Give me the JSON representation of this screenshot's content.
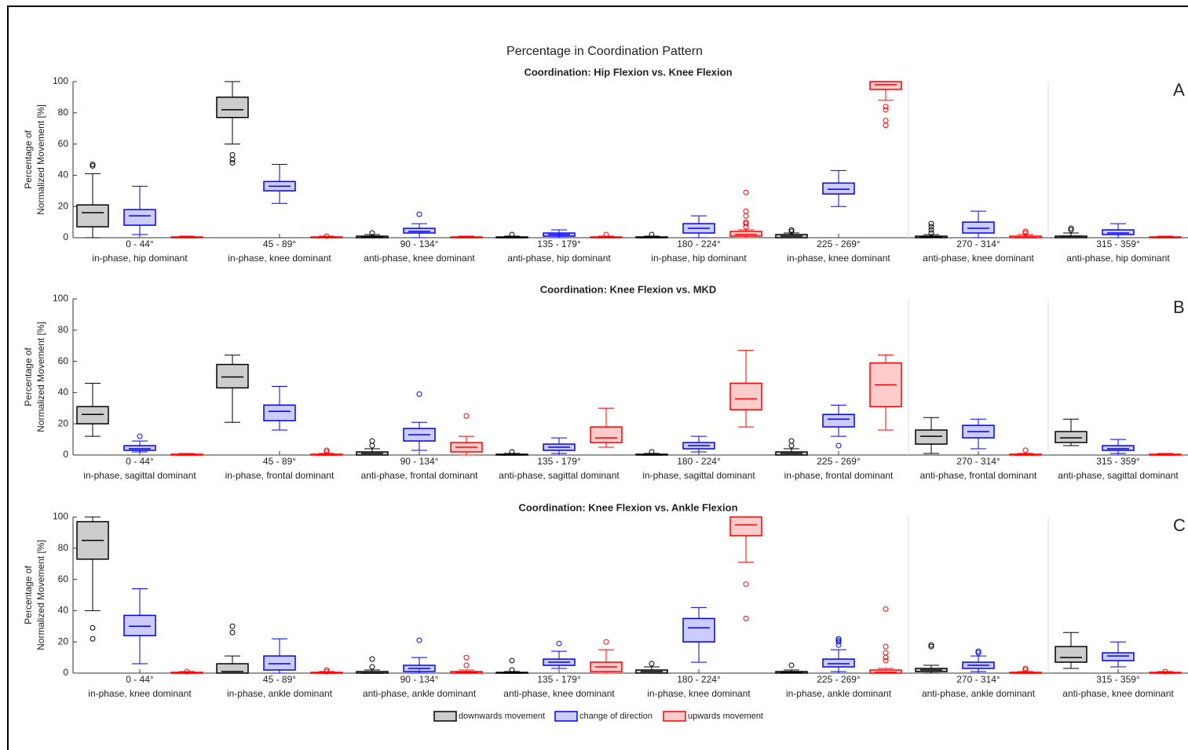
{
  "title": "Percentage in Coordination Pattern",
  "chart_data": [
    {
      "type": "box",
      "title": "Coordination: Hip Flexion vs. Knee Flexion",
      "panel": "A",
      "ylabel": [
        "Percentage of",
        "Normalized Movement [%]"
      ],
      "categories": [
        "0 - 44°",
        "45 - 89°",
        "90 - 134°",
        "135 - 179°",
        "180 - 224°",
        "225 - 269°",
        "270 - 314°",
        "315 - 359°"
      ],
      "sublabels": [
        "in-phase, hip dominant",
        "in-phase, knee dominant",
        "anti-phase, knee dominant",
        "anti-phase, hip dominant",
        "in-phase, hip dominant",
        "in-phase, knee dominant",
        "anti-phase, knee dominant",
        "anti-phase, hip dominant"
      ],
      "ylim": [
        0,
        100
      ],
      "yticks": [
        0,
        20,
        40,
        60,
        80,
        100
      ],
      "series": [
        {
          "name": "downwards movement",
          "color": "#000000",
          "boxes": [
            {
              "min": 0,
              "q1": 7,
              "median": 16,
              "q3": 21,
              "max": 41,
              "outliers": [
                46,
                47
              ]
            },
            {
              "min": 60,
              "q1": 77,
              "median": 82,
              "q3": 90,
              "max": 100,
              "outliers": [
                48,
                50,
                53
              ]
            },
            {
              "min": 0,
              "q1": 0,
              "median": 0.5,
              "q3": 1,
              "max": 2,
              "outliers": [
                3
              ]
            },
            {
              "min": 0,
              "q1": 0,
              "median": 0,
              "q3": 0.5,
              "max": 1,
              "outliers": [
                2
              ]
            },
            {
              "min": 0,
              "q1": 0,
              "median": 0,
              "q3": 0.5,
              "max": 1,
              "outliers": [
                2
              ]
            },
            {
              "min": 0,
              "q1": 0,
              "median": 1,
              "q3": 2,
              "max": 3,
              "outliers": [
                4,
                5
              ]
            },
            {
              "min": 0,
              "q1": 0,
              "median": 0.5,
              "q3": 1,
              "max": 2,
              "outliers": [
                3,
                5,
                7,
                9
              ]
            },
            {
              "min": 0,
              "q1": 0,
              "median": 1,
              "q3": 1,
              "max": 3,
              "outliers": [
                5,
                6
              ]
            }
          ]
        },
        {
          "name": "change of direction",
          "color": "#0000ff",
          "boxes": [
            {
              "min": 2,
              "q1": 8,
              "median": 14,
              "q3": 18,
              "max": 33,
              "outliers": []
            },
            {
              "min": 22,
              "q1": 30,
              "median": 33,
              "q3": 36,
              "max": 47,
              "outliers": []
            },
            {
              "min": 0,
              "q1": 3,
              "median": 4,
              "q3": 6,
              "max": 9,
              "outliers": [
                15
              ]
            },
            {
              "min": 0,
              "q1": 1,
              "median": 2,
              "q3": 3,
              "max": 5,
              "outliers": []
            },
            {
              "min": 0,
              "q1": 3,
              "median": 6,
              "q3": 9,
              "max": 14,
              "outliers": []
            },
            {
              "min": 20,
              "q1": 28,
              "median": 31,
              "q3": 35,
              "max": 43,
              "outliers": []
            },
            {
              "min": 0,
              "q1": 3,
              "median": 6,
              "q3": 10,
              "max": 17,
              "outliers": []
            },
            {
              "min": 0,
              "q1": 2,
              "median": 3,
              "q3": 5,
              "max": 9,
              "outliers": []
            }
          ]
        },
        {
          "name": "upwards movement",
          "color": "#ff0000",
          "boxes": [
            {
              "min": 0,
              "q1": 0,
              "median": 0,
              "q3": 0.5,
              "max": 1,
              "outliers": []
            },
            {
              "min": 0,
              "q1": 0,
              "median": 0,
              "q3": 0.5,
              "max": 1,
              "outliers": [
                1
              ]
            },
            {
              "min": 0,
              "q1": 0,
              "median": 0,
              "q3": 0.5,
              "max": 1,
              "outliers": []
            },
            {
              "min": 0,
              "q1": 0,
              "median": 0,
              "q3": 0.5,
              "max": 1,
              "outliers": [
                2
              ]
            },
            {
              "min": 0,
              "q1": 1,
              "median": 2,
              "q3": 4,
              "max": 5,
              "outliers": [
                7,
                9,
                10,
                14,
                17,
                29
              ]
            },
            {
              "min": 88,
              "q1": 95,
              "median": 98,
              "q3": 100,
              "max": 100,
              "outliers": [
                72,
                75,
                82,
                84
              ]
            },
            {
              "min": 0,
              "q1": 0,
              "median": 0,
              "q3": 1,
              "max": 2,
              "outliers": [
                3,
                4
              ]
            },
            {
              "min": 0,
              "q1": 0,
              "median": 0,
              "q3": 0.5,
              "max": 1,
              "outliers": []
            }
          ]
        }
      ]
    },
    {
      "type": "box",
      "title": "Coordination: Knee Flexion vs. MKD",
      "panel": "B",
      "ylabel": [
        "Percentage of",
        "Normalized Movement [%]"
      ],
      "categories": [
        "0 - 44°",
        "45 - 89°",
        "90 - 134°",
        "135 - 179°",
        "180 - 224°",
        "225 - 269°",
        "270 - 314°",
        "315 - 359°"
      ],
      "sublabels": [
        "in-phase, sagittal dominant",
        "in-phase, frontal dominant",
        "anti-phase, frontal dominant",
        "anti-phase, sagittal dominant",
        "in-phase, sagittal dominant",
        "in-phase, frontal dominant",
        "anti-phase, frontal dominant",
        "anti-phase, sagittal dominant"
      ],
      "ylim": [
        0,
        100
      ],
      "yticks": [
        0,
        20,
        40,
        60,
        80,
        100
      ],
      "series": [
        {
          "name": "downwards movement",
          "color": "#000000",
          "boxes": [
            {
              "min": 12,
              "q1": 20,
              "median": 26,
              "q3": 31,
              "max": 46,
              "outliers": []
            },
            {
              "min": 21,
              "q1": 43,
              "median": 50,
              "q3": 58,
              "max": 64,
              "outliers": []
            },
            {
              "min": 0,
              "q1": 0,
              "median": 1,
              "q3": 2,
              "max": 4,
              "outliers": [
                6,
                9
              ]
            },
            {
              "min": 0,
              "q1": 0,
              "median": 0,
              "q3": 0.5,
              "max": 1,
              "outliers": [
                2
              ]
            },
            {
              "min": 0,
              "q1": 0,
              "median": 0,
              "q3": 0.5,
              "max": 1,
              "outliers": [
                2
              ]
            },
            {
              "min": 0,
              "q1": 0,
              "median": 1,
              "q3": 2,
              "max": 4,
              "outliers": [
                6,
                9
              ]
            },
            {
              "min": 1,
              "q1": 7,
              "median": 12,
              "q3": 16,
              "max": 24,
              "outliers": []
            },
            {
              "min": 6,
              "q1": 8,
              "median": 11,
              "q3": 15,
              "max": 23,
              "outliers": []
            }
          ]
        },
        {
          "name": "change of direction",
          "color": "#0000ff",
          "boxes": [
            {
              "min": 2,
              "q1": 3,
              "median": 4,
              "q3": 6,
              "max": 9,
              "outliers": [
                12
              ]
            },
            {
              "min": 16,
              "q1": 22,
              "median": 28,
              "q3": 32,
              "max": 44,
              "outliers": []
            },
            {
              "min": 3,
              "q1": 9,
              "median": 13,
              "q3": 17,
              "max": 21,
              "outliers": [
                39
              ]
            },
            {
              "min": 1,
              "q1": 3,
              "median": 5,
              "q3": 7,
              "max": 11,
              "outliers": []
            },
            {
              "min": 2,
              "q1": 4,
              "median": 6,
              "q3": 8,
              "max": 12,
              "outliers": []
            },
            {
              "min": 12,
              "q1": 18,
              "median": 23,
              "q3": 26,
              "max": 32,
              "outliers": [
                6
              ]
            },
            {
              "min": 4,
              "q1": 11,
              "median": 15,
              "q3": 19,
              "max": 23,
              "outliers": []
            },
            {
              "min": 1,
              "q1": 3,
              "median": 4,
              "q3": 6,
              "max": 10,
              "outliers": []
            }
          ]
        },
        {
          "name": "upwards movement",
          "color": "#ff0000",
          "boxes": [
            {
              "min": 0,
              "q1": 0,
              "median": 0,
              "q3": 0.5,
              "max": 1,
              "outliers": []
            },
            {
              "min": 0,
              "q1": 0,
              "median": 0,
              "q3": 0.5,
              "max": 1,
              "outliers": [
                2,
                3
              ]
            },
            {
              "min": 0,
              "q1": 2,
              "median": 5,
              "q3": 8,
              "max": 12,
              "outliers": [
                25
              ]
            },
            {
              "min": 5,
              "q1": 8,
              "median": 11,
              "q3": 18,
              "max": 30,
              "outliers": []
            },
            {
              "min": 18,
              "q1": 29,
              "median": 36,
              "q3": 46,
              "max": 67,
              "outliers": []
            },
            {
              "min": 16,
              "q1": 31,
              "median": 45,
              "q3": 59,
              "max": 64,
              "outliers": []
            },
            {
              "min": 0,
              "q1": 0,
              "median": 0,
              "q3": 0.5,
              "max": 1,
              "outliers": [
                3
              ]
            },
            {
              "min": 0,
              "q1": 0,
              "median": 0,
              "q3": 0.5,
              "max": 1,
              "outliers": []
            }
          ]
        }
      ]
    },
    {
      "type": "box",
      "title": "Coordination: Knee Flexion vs. Ankle Flexion",
      "panel": "C",
      "ylabel": [
        "Percentage of",
        "Normalized Movement [%]"
      ],
      "categories": [
        "0 - 44°",
        "45 - 89°",
        "90 - 134°",
        "135 - 179°",
        "180 - 224°",
        "225 - 269°",
        "270 - 314°",
        "315 - 359°"
      ],
      "sublabels": [
        "in-phase, knee dominant",
        "in-phase, ankle dominant",
        "anti-phase, ankle dominant",
        "anti-phase, knee dominant",
        "in-phase, knee dominant",
        "in-phase, ankle dominant",
        "anti-phase, ankle dominant",
        "anti-phase, knee dominant"
      ],
      "ylim": [
        0,
        100
      ],
      "yticks": [
        0,
        20,
        40,
        60,
        80,
        100
      ],
      "series": [
        {
          "name": "downwards movement",
          "color": "#000000",
          "boxes": [
            {
              "min": 40,
              "q1": 73,
              "median": 85,
              "q3": 97,
              "max": 100,
              "outliers": [
                22,
                29
              ]
            },
            {
              "min": 0,
              "q1": 0,
              "median": 1,
              "q3": 6,
              "max": 11,
              "outliers": [
                26,
                30
              ]
            },
            {
              "min": 0,
              "q1": 0,
              "median": 0,
              "q3": 1,
              "max": 2,
              "outliers": [
                4,
                9
              ]
            },
            {
              "min": 0,
              "q1": 0,
              "median": 0,
              "q3": 0.5,
              "max": 1,
              "outliers": [
                2,
                8
              ]
            },
            {
              "min": 0,
              "q1": 0,
              "median": 1,
              "q3": 2,
              "max": 4,
              "outliers": [
                6
              ]
            },
            {
              "min": 0,
              "q1": 0,
              "median": 0.5,
              "q3": 1,
              "max": 2,
              "outliers": [
                5
              ]
            },
            {
              "min": 0,
              "q1": 1,
              "median": 2,
              "q3": 3,
              "max": 5,
              "outliers": [
                17,
                18
              ]
            },
            {
              "min": 3,
              "q1": 7,
              "median": 10,
              "q3": 17,
              "max": 26,
              "outliers": []
            }
          ]
        },
        {
          "name": "change of direction",
          "color": "#0000ff",
          "boxes": [
            {
              "min": 6,
              "q1": 24,
              "median": 30,
              "q3": 37,
              "max": 54,
              "outliers": []
            },
            {
              "min": 0,
              "q1": 2,
              "median": 6,
              "q3": 11,
              "max": 22,
              "outliers": []
            },
            {
              "min": 0,
              "q1": 1,
              "median": 3,
              "q3": 5,
              "max": 10,
              "outliers": [
                21
              ]
            },
            {
              "min": 3,
              "q1": 5,
              "median": 7,
              "q3": 9,
              "max": 14,
              "outliers": [
                19
              ]
            },
            {
              "min": 7,
              "q1": 20,
              "median": 29,
              "q3": 35,
              "max": 42,
              "outliers": []
            },
            {
              "min": 1,
              "q1": 4,
              "median": 6,
              "q3": 9,
              "max": 15,
              "outliers": [
                18,
                20,
                21,
                22
              ]
            },
            {
              "min": 1,
              "q1": 3,
              "median": 5,
              "q3": 7,
              "max": 11,
              "outliers": [
                13,
                14
              ]
            },
            {
              "min": 4,
              "q1": 8,
              "median": 11,
              "q3": 13,
              "max": 20,
              "outliers": []
            }
          ]
        },
        {
          "name": "upwards movement",
          "color": "#ff0000",
          "boxes": [
            {
              "min": 0,
              "q1": 0,
              "median": 0,
              "q3": 0.5,
              "max": 1,
              "outliers": [
                1
              ]
            },
            {
              "min": 0,
              "q1": 0,
              "median": 0,
              "q3": 0.5,
              "max": 1,
              "outliers": [
                1,
                2
              ]
            },
            {
              "min": 0,
              "q1": 0,
              "median": 0.5,
              "q3": 1,
              "max": 2,
              "outliers": [
                5,
                10
              ]
            },
            {
              "min": 0,
              "q1": 1,
              "median": 4,
              "q3": 7,
              "max": 15,
              "outliers": [
                20
              ]
            },
            {
              "min": 71,
              "q1": 88,
              "median": 95,
              "q3": 100,
              "max": 100,
              "outliers": [
                35,
                57
              ]
            },
            {
              "min": 0,
              "q1": 0,
              "median": 0.5,
              "q3": 2,
              "max": 3,
              "outliers": [
                8,
                10,
                13,
                17,
                41
              ]
            },
            {
              "min": 0,
              "q1": 0,
              "median": 0,
              "q3": 0.5,
              "max": 1,
              "outliers": [
                2,
                3
              ]
            },
            {
              "min": 0,
              "q1": 0,
              "median": 0,
              "q3": 0.5,
              "max": 1,
              "outliers": [
                1
              ]
            }
          ]
        }
      ]
    }
  ]
}
